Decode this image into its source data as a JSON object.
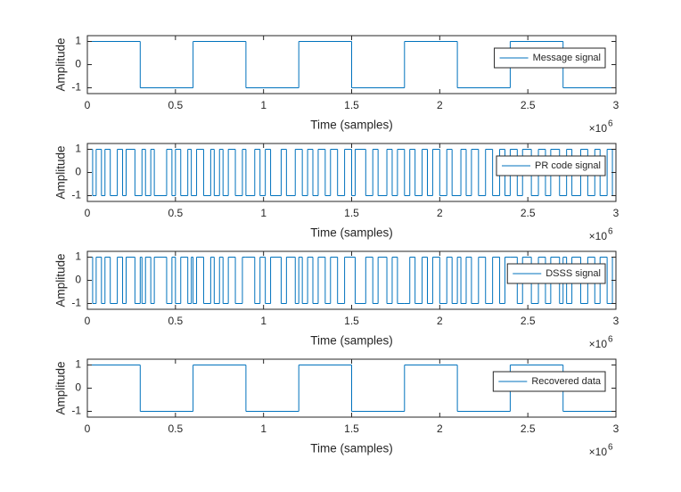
{
  "chart_data": [
    {
      "type": "line",
      "drawstyle": "steps-post",
      "xlabel": "Time (samples)",
      "ylabel": "Amplitude",
      "x_multiplier": {
        "base": "×10",
        "power": "6"
      },
      "legend": "northeast",
      "xlim": [
        0,
        3000000
      ],
      "ylim": [
        -1.25,
        1.25
      ],
      "xticks": [
        0,
        {
          "value": 500000,
          "label": "0.5"
        },
        {
          "value": 1000000,
          "label": "1"
        },
        {
          "value": 1500000,
          "label": "1.5"
        },
        {
          "value": 2000000,
          "label": "2"
        },
        {
          "value": 2500000,
          "label": "2.5"
        },
        {
          "value": 3000000,
          "label": "3"
        }
      ],
      "yticks": [
        -1,
        0,
        1
      ],
      "x": [
        0,
        300000,
        600000,
        900000,
        1200000,
        1500000,
        1800000,
        2100000,
        2400000,
        2700000,
        3000000
      ],
      "series": [
        {
          "name": "Message signal",
          "color": "#0072bd",
          "values": [
            1,
            -1,
            1,
            -1,
            1,
            -1,
            1,
            -1,
            1,
            -1,
            -1
          ]
        }
      ]
    },
    {
      "type": "line",
      "drawstyle": "steps-post",
      "xlabel": "Time (samples)",
      "ylabel": "Amplitude",
      "x_multiplier": {
        "base": "×10",
        "power": "6"
      },
      "legend": "northeast",
      "xlim": [
        0,
        3000000
      ],
      "ylim": [
        -1.25,
        1.25
      ],
      "xticks": [
        0,
        {
          "value": 500000,
          "label": "0.5"
        },
        {
          "value": 1000000,
          "label": "1"
        },
        {
          "value": 1500000,
          "label": "1.5"
        },
        {
          "value": 2000000,
          "label": "2"
        },
        {
          "value": 2500000,
          "label": "2.5"
        },
        {
          "value": 3000000,
          "label": "3"
        }
      ],
      "yticks": [
        -1,
        0,
        1
      ],
      "x": [
        0,
        30000,
        50000,
        80000,
        100000,
        130000,
        170000,
        200000,
        220000,
        270000,
        310000,
        330000,
        360000,
        380000,
        450000,
        480000,
        500000,
        530000,
        570000,
        590000,
        620000,
        660000,
        700000,
        720000,
        750000,
        770000,
        800000,
        840000,
        880000,
        900000,
        950000,
        980000,
        1010000,
        1040000,
        1100000,
        1130000,
        1180000,
        1220000,
        1250000,
        1280000,
        1310000,
        1350000,
        1380000,
        1420000,
        1460000,
        1500000,
        1520000,
        1580000,
        1620000,
        1650000,
        1700000,
        1730000,
        1760000,
        1800000,
        1830000,
        1860000,
        1900000,
        1930000,
        1960000,
        2000000,
        2040000,
        2070000,
        2120000,
        2150000,
        2180000,
        2220000,
        2260000,
        2300000,
        2340000,
        2370000,
        2400000,
        2440000,
        2470000,
        2520000,
        2560000,
        2600000,
        2630000,
        2680000,
        2720000,
        2750000,
        2800000,
        2840000,
        2880000,
        2910000,
        2950000,
        2980000,
        3000000
      ],
      "series": [
        {
          "name": "PR code signal",
          "color": "#0072bd",
          "values": [
            1,
            -1,
            1,
            -1,
            1,
            -1,
            1,
            -1,
            1,
            -1,
            1,
            -1,
            1,
            -1,
            1,
            -1,
            1,
            -1,
            1,
            -1,
            1,
            -1,
            1,
            -1,
            1,
            -1,
            1,
            -1,
            1,
            -1,
            1,
            -1,
            1,
            -1,
            1,
            -1,
            1,
            -1,
            1,
            -1,
            1,
            -1,
            1,
            -1,
            1,
            -1,
            1,
            -1,
            1,
            -1,
            1,
            -1,
            1,
            -1,
            1,
            -1,
            1,
            -1,
            1,
            -1,
            1,
            -1,
            1,
            -1,
            1,
            -1,
            1,
            -1,
            1,
            -1,
            1,
            -1,
            1,
            -1,
            1,
            -1,
            1,
            -1,
            1,
            -1,
            1,
            -1,
            1,
            -1,
            1,
            -1,
            -1
          ]
        }
      ]
    },
    {
      "type": "line",
      "drawstyle": "steps-post",
      "xlabel": "Time (samples)",
      "ylabel": "Amplitude",
      "x_multiplier": {
        "base": "×10",
        "power": "6"
      },
      "legend": "northeast",
      "xlim": [
        0,
        3000000
      ],
      "ylim": [
        -1.25,
        1.25
      ],
      "xticks": [
        0,
        {
          "value": 500000,
          "label": "0.5"
        },
        {
          "value": 1000000,
          "label": "1"
        },
        {
          "value": 1500000,
          "label": "1.5"
        },
        {
          "value": 2000000,
          "label": "2"
        },
        {
          "value": 2500000,
          "label": "2.5"
        },
        {
          "value": 3000000,
          "label": "3"
        }
      ],
      "yticks": [
        -1,
        0,
        1
      ],
      "x": [
        0,
        30000,
        50000,
        80000,
        100000,
        130000,
        170000,
        200000,
        220000,
        270000,
        300000,
        310000,
        330000,
        360000,
        380000,
        450000,
        480000,
        500000,
        530000,
        570000,
        590000,
        600000,
        620000,
        660000,
        700000,
        720000,
        750000,
        770000,
        800000,
        840000,
        880000,
        900000,
        950000,
        980000,
        1010000,
        1040000,
        1100000,
        1130000,
        1180000,
        1200000,
        1220000,
        1250000,
        1280000,
        1310000,
        1350000,
        1380000,
        1420000,
        1460000,
        1500000,
        1520000,
        1580000,
        1620000,
        1650000,
        1700000,
        1730000,
        1760000,
        1800000,
        1830000,
        1860000,
        1900000,
        1930000,
        1960000,
        2000000,
        2040000,
        2070000,
        2100000,
        2120000,
        2150000,
        2180000,
        2220000,
        2260000,
        2300000,
        2340000,
        2370000,
        2400000,
        2440000,
        2470000,
        2520000,
        2560000,
        2600000,
        2630000,
        2680000,
        2700000,
        2720000,
        2750000,
        2800000,
        2840000,
        2880000,
        2910000,
        2950000,
        2980000,
        3000000
      ],
      "series": [
        {
          "name": "DSSS signal",
          "color": "#0072bd",
          "values": [
            1,
            -1,
            1,
            -1,
            1,
            -1,
            1,
            -1,
            1,
            -1,
            1,
            -1,
            1,
            -1,
            1,
            -1,
            1,
            -1,
            1,
            -1,
            1,
            -1,
            1,
            -1,
            1,
            -1,
            1,
            -1,
            1,
            -1,
            1,
            1,
            -1,
            1,
            -1,
            1,
            -1,
            1,
            -1,
            1,
            -1,
            1,
            -1,
            1,
            -1,
            1,
            -1,
            1,
            1,
            -1,
            1,
            -1,
            1,
            -1,
            1,
            -1,
            -1,
            1,
            -1,
            1,
            -1,
            1,
            -1,
            1,
            -1,
            1,
            -1,
            1,
            -1,
            1,
            -1,
            1,
            -1,
            1,
            1,
            -1,
            1,
            -1,
            1,
            -1,
            1,
            -1,
            1,
            -1,
            1,
            -1,
            1,
            -1,
            1,
            -1,
            1,
            1
          ]
        }
      ]
    },
    {
      "type": "line",
      "drawstyle": "steps-post",
      "xlabel": "Time (samples)",
      "ylabel": "Amplitude",
      "x_multiplier": {
        "base": "×10",
        "power": "6"
      },
      "legend": "northeast",
      "xlim": [
        0,
        3000000
      ],
      "ylim": [
        -1.25,
        1.25
      ],
      "xticks": [
        0,
        {
          "value": 500000,
          "label": "0.5"
        },
        {
          "value": 1000000,
          "label": "1"
        },
        {
          "value": 1500000,
          "label": "1.5"
        },
        {
          "value": 2000000,
          "label": "2"
        },
        {
          "value": 2500000,
          "label": "2.5"
        },
        {
          "value": 3000000,
          "label": "3"
        }
      ],
      "yticks": [
        -1,
        0,
        1
      ],
      "x": [
        0,
        300000,
        600000,
        900000,
        1200000,
        1500000,
        1800000,
        2100000,
        2400000,
        2700000,
        3000000
      ],
      "series": [
        {
          "name": "Recovered data",
          "color": "#0072bd",
          "values": [
            1,
            -1,
            1,
            -1,
            1,
            -1,
            1,
            -1,
            1,
            -1,
            -1
          ]
        }
      ]
    }
  ]
}
